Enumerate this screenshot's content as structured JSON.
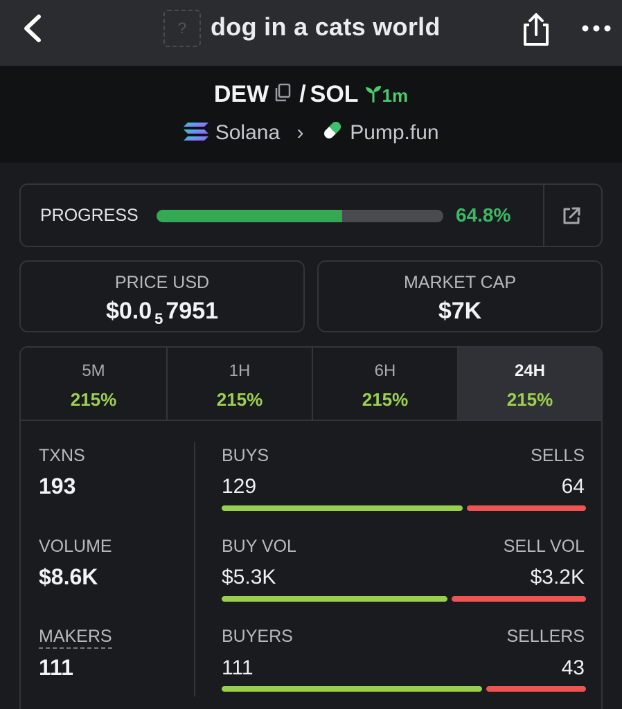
{
  "nav": {
    "title": "dog in a cats world",
    "token_image_placeholder": "?"
  },
  "pair": {
    "base_symbol": "DEW",
    "separator": "/",
    "quote_symbol": "SOL",
    "age": "1m",
    "chain": "Solana",
    "dex": "Pump.fun"
  },
  "progress": {
    "label": "PROGRESS",
    "value_text": "64.8%",
    "fraction": 0.648
  },
  "price": {
    "label": "PRICE USD",
    "prefix": "$0.0",
    "zero_count": "5",
    "digits": "7951"
  },
  "market_cap": {
    "label": "MARKET CAP",
    "value": "$7K"
  },
  "tabs": [
    {
      "label": "5M",
      "value": "215%"
    },
    {
      "label": "1H",
      "value": "215%"
    },
    {
      "label": "6H",
      "value": "215%"
    },
    {
      "label": "24H",
      "value": "215%"
    }
  ],
  "active_tab": "24H",
  "metrics": {
    "txns": {
      "label": "TXNS",
      "value": "193"
    },
    "volume": {
      "label": "VOLUME",
      "value": "$8.6K"
    },
    "makers": {
      "label": "MAKERS",
      "value": "111"
    }
  },
  "splits": {
    "buys_sells": {
      "left_label": "BUYS",
      "right_label": "SELLS",
      "left_value": "129",
      "right_value": "64",
      "left_share": 0.668
    },
    "buy_sell_vol": {
      "left_label": "BUY VOL",
      "right_label": "SELL VOL",
      "left_value": "$5.3K",
      "right_value": "$3.2K",
      "left_share": 0.625
    },
    "buyers_sellers": {
      "left_label": "BUYERS",
      "right_label": "SELLERS",
      "left_value": "111",
      "right_value": "43",
      "left_share": 0.72
    }
  },
  "colors": {
    "progress_green": "#34a853",
    "buy_green": "#98cf4c",
    "sell_red": "#ee5552",
    "age_green": "#4ccb6b"
  }
}
